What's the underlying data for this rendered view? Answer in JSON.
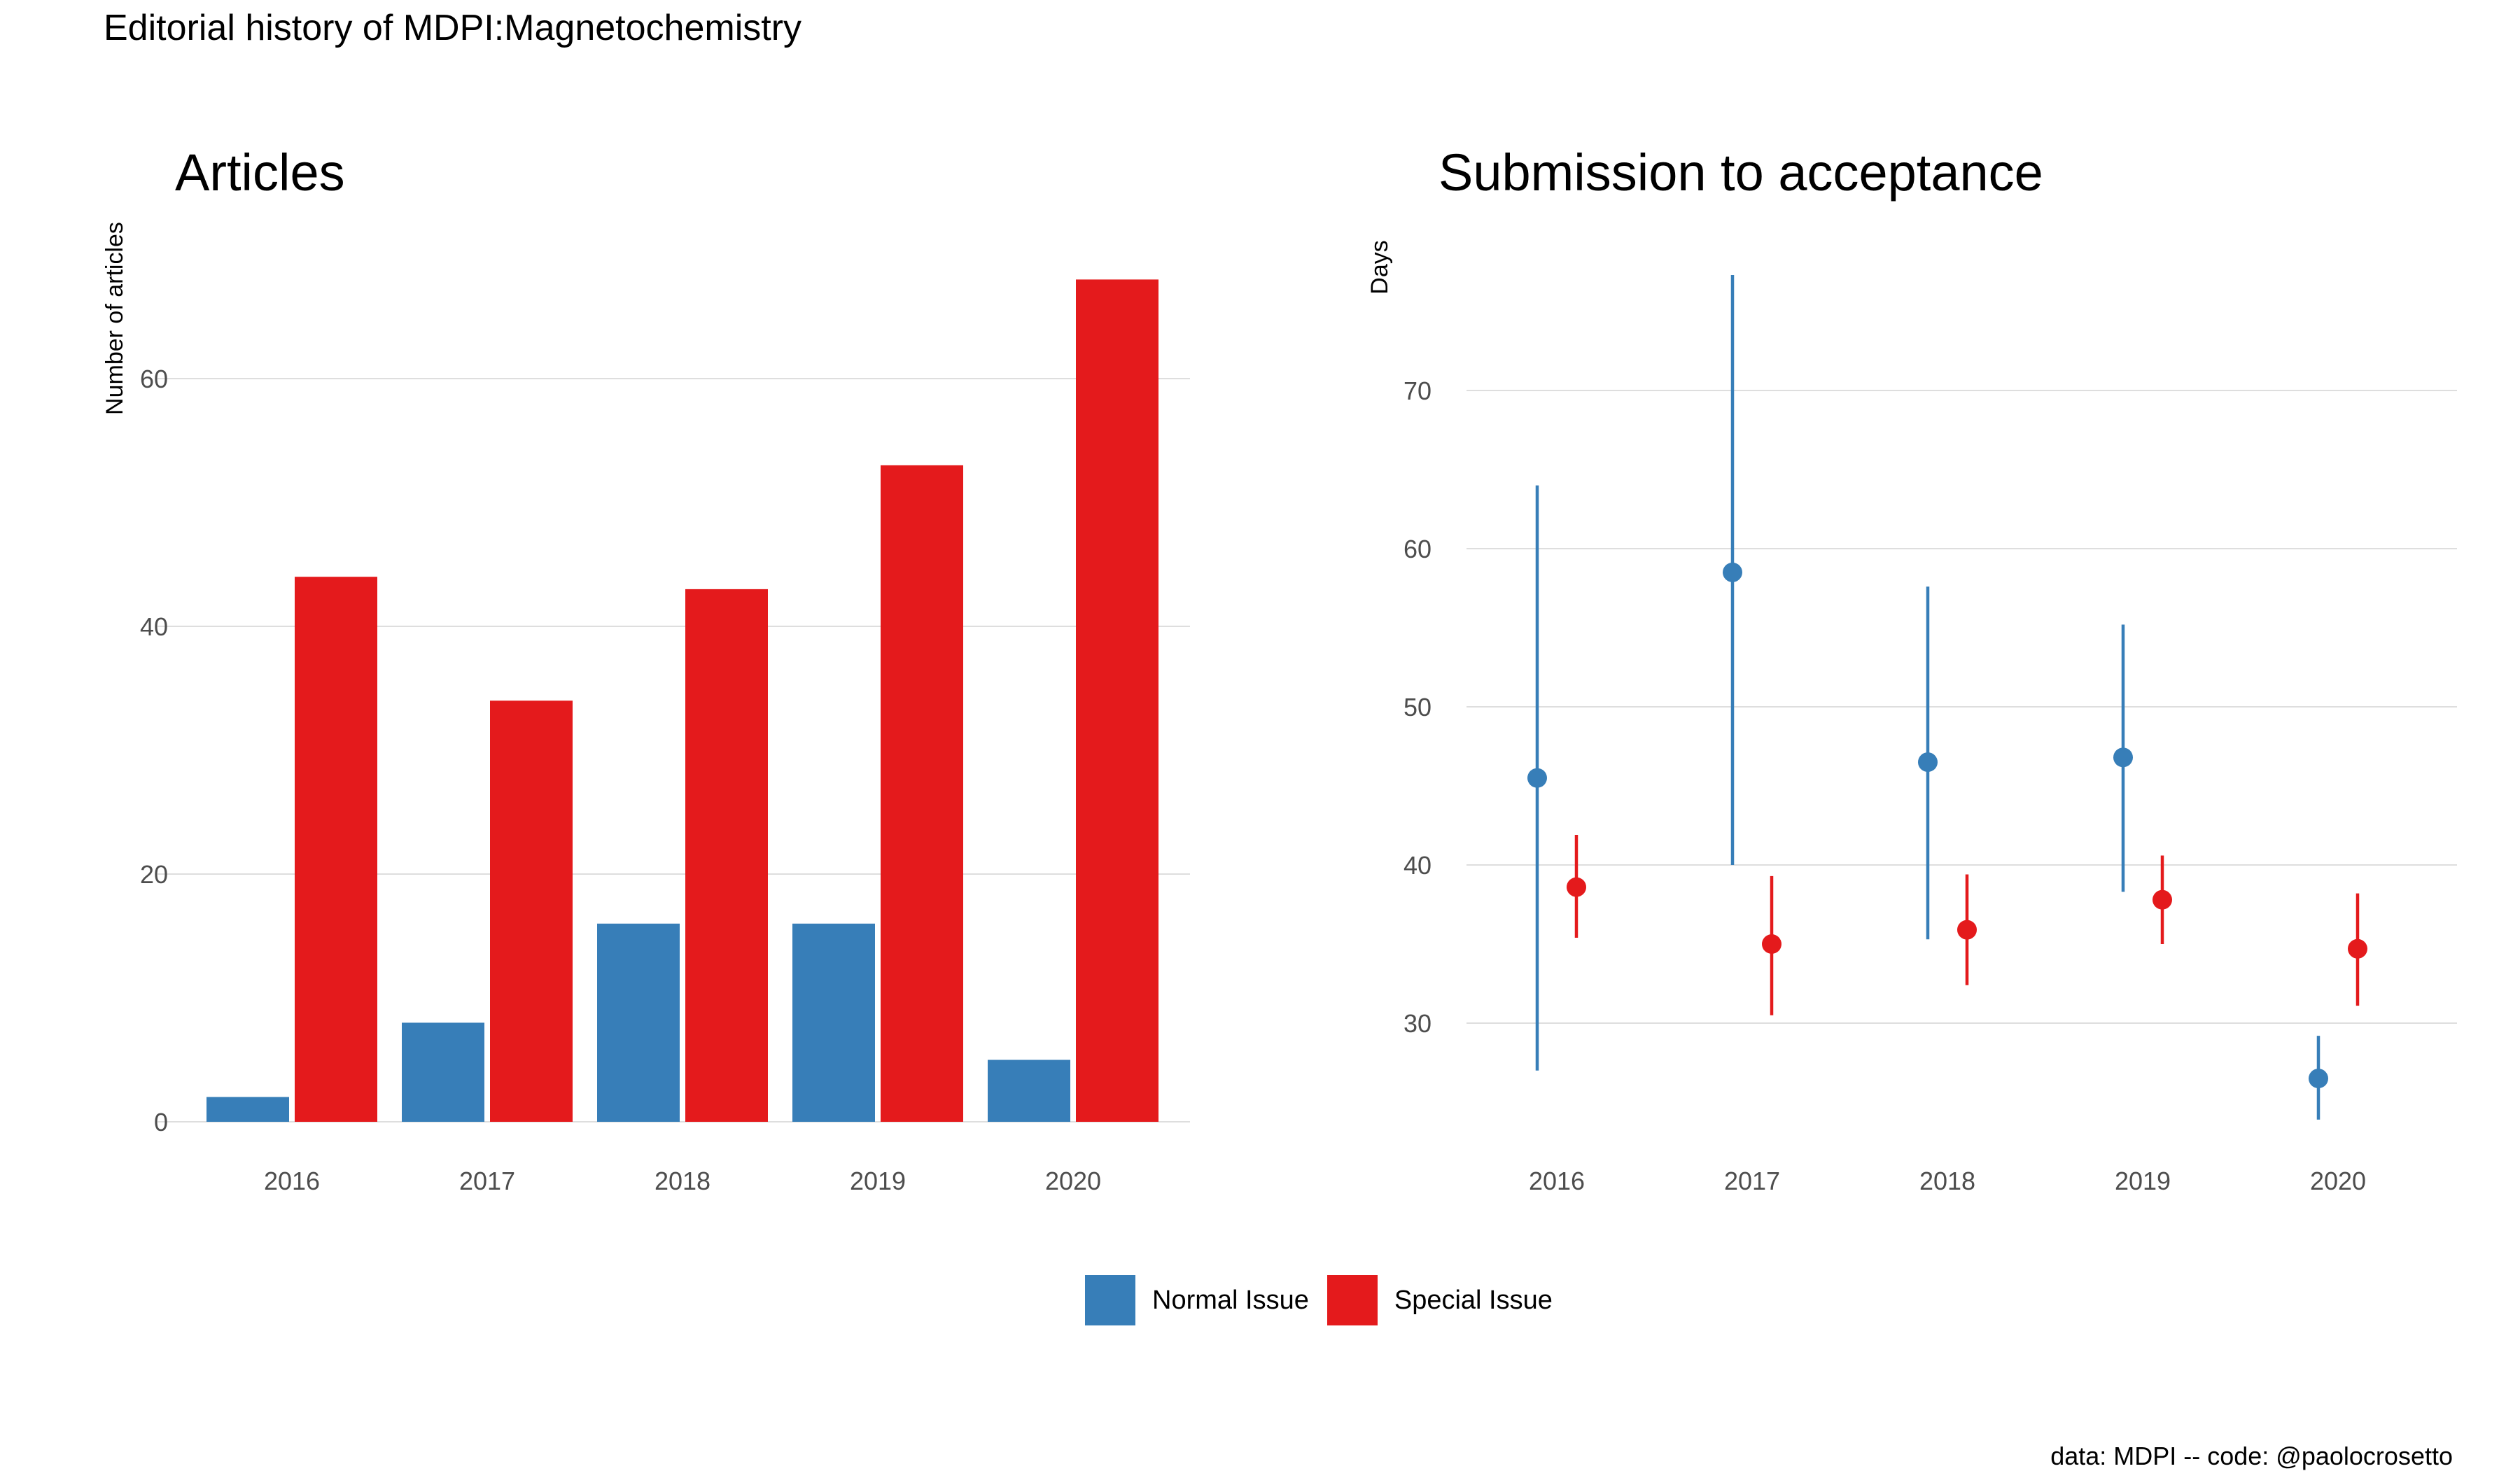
{
  "title": "Editorial history of MDPI:Magnetochemistry",
  "caption": "data: MDPI -- code: @paolocrosetto",
  "colors": {
    "normal": "#377EB8",
    "special": "#E41A1C",
    "grid": "#dedede",
    "tick_text": "#4d4d4d"
  },
  "legend": {
    "items": [
      {
        "label": "Normal Issue",
        "color": "#377EB8"
      },
      {
        "label": "Special Issue",
        "color": "#E41A1C"
      }
    ]
  },
  "chart_data": [
    {
      "type": "bar",
      "title": "Articles",
      "xlabel": "",
      "ylabel": "Number of articles",
      "categories": [
        "2016",
        "2017",
        "2018",
        "2019",
        "2020"
      ],
      "yticks": [
        0,
        20,
        40,
        60
      ],
      "ylim": [
        0,
        70
      ],
      "grid": true,
      "legend_position": "bottom",
      "series": [
        {
          "name": "Normal Issue",
          "color": "#377EB8",
          "values": [
            2,
            8,
            16,
            16,
            5
          ]
        },
        {
          "name": "Special Issue",
          "color": "#E41A1C",
          "values": [
            44,
            34,
            43,
            53,
            68
          ]
        }
      ]
    },
    {
      "type": "scatter",
      "title": "Submission to acceptance",
      "xlabel": "",
      "ylabel": "Days",
      "categories": [
        "2016",
        "2017",
        "2018",
        "2019",
        "2020"
      ],
      "yticks": [
        30,
        40,
        50,
        60,
        70
      ],
      "ylim": [
        24,
        77
      ],
      "grid": true,
      "legend_position": "bottom",
      "series": [
        {
          "name": "Normal Issue",
          "color": "#377EB8",
          "values": [
            45.5,
            58.5,
            46.5,
            46.8,
            26.5
          ],
          "lower": [
            27.0,
            40.0,
            35.3,
            38.3,
            23.9
          ],
          "upper": [
            64.0,
            77.3,
            57.6,
            55.2,
            29.2
          ]
        },
        {
          "name": "Special Issue",
          "color": "#E41A1C",
          "values": [
            38.6,
            35.0,
            35.9,
            37.8,
            34.7
          ],
          "lower": [
            35.4,
            30.5,
            32.4,
            35.0,
            31.1
          ],
          "upper": [
            41.9,
            39.3,
            39.4,
            40.6,
            38.2
          ]
        }
      ]
    }
  ]
}
